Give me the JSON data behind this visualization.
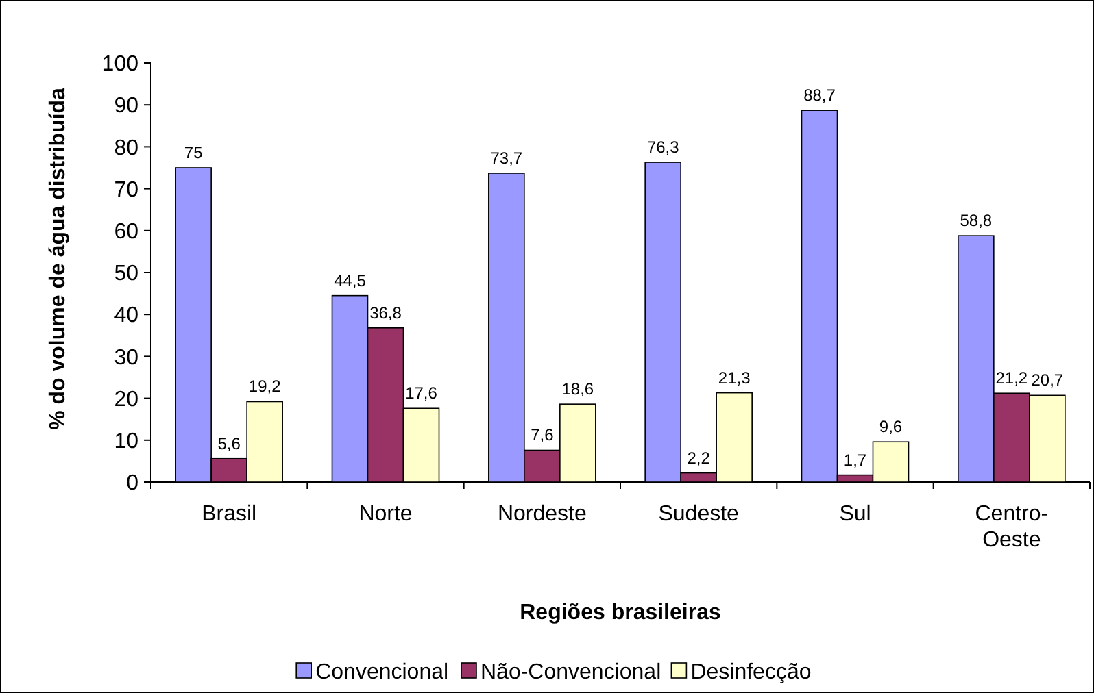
{
  "chart_data": {
    "type": "bar",
    "xlabel": "Regiões brasileiras",
    "ylabel": "% do volume de água distribuída",
    "categories": [
      "Brasil",
      "Norte",
      "Nordeste",
      "Sudeste",
      "Sul",
      "Centro-Oeste"
    ],
    "series": [
      {
        "name": "Convencional",
        "color": "#9999ff",
        "values": [
          75,
          44.5,
          73.7,
          76.3,
          88.7,
          58.8
        ],
        "value_labels": [
          "75",
          "44,5",
          "73,7",
          "76,3",
          "88,7",
          "58,8"
        ]
      },
      {
        "name": "Não-Convencional",
        "color": "#993366",
        "values": [
          5.6,
          36.8,
          7.6,
          2.2,
          1.7,
          21.2
        ],
        "value_labels": [
          "5,6",
          "36,8",
          "7,6",
          "2,2",
          "1,7",
          "21,2"
        ]
      },
      {
        "name": "Desinfecção",
        "color": "#ffffcc",
        "values": [
          19.2,
          17.6,
          18.6,
          21.3,
          9.6,
          20.7
        ],
        "value_labels": [
          "19,2",
          "17,6",
          "18,6",
          "21,3",
          "9,6",
          "20,7"
        ]
      }
    ],
    "ylim": [
      0,
      100
    ],
    "yticks": [
      0,
      10,
      20,
      30,
      40,
      50,
      60,
      70,
      80,
      90,
      100
    ],
    "grid": false,
    "legend": "bottom"
  }
}
